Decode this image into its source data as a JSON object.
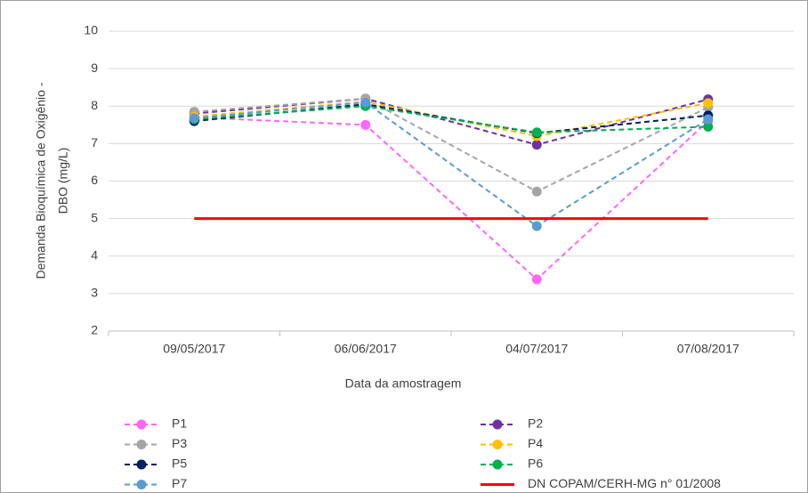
{
  "chart_data": {
    "type": "line",
    "ylabel": [
      "Demanda Bioquímica de Oxigênio -",
      "DBO (mg/L)"
    ],
    "xlabel": "Data da amostragem",
    "categories": [
      "09/05/2017",
      "06/06/2017",
      "04/07/2017",
      "07/08/2017"
    ],
    "ylim": [
      2,
      10
    ],
    "yticks": [
      2,
      3,
      4,
      5,
      6,
      7,
      8,
      9,
      10
    ],
    "grid": true,
    "series": [
      {
        "name": "P1",
        "color": "#ff66ff",
        "dashed": true,
        "markers": true,
        "values": [
          7.7,
          7.5,
          3.38,
          7.6
        ]
      },
      {
        "name": "P2",
        "color": "#7030a0",
        "dashed": true,
        "markers": true,
        "values": [
          7.8,
          8.2,
          6.97,
          8.18
        ]
      },
      {
        "name": "P3",
        "color": "#a5a5a5",
        "dashed": true,
        "markers": true,
        "values": [
          7.85,
          8.2,
          5.72,
          7.97
        ]
      },
      {
        "name": "P4",
        "color": "#ffc000",
        "dashed": true,
        "markers": true,
        "values": [
          7.72,
          8.12,
          7.2,
          8.08
        ]
      },
      {
        "name": "P5",
        "color": "#002060",
        "dashed": true,
        "markers": true,
        "values": [
          7.6,
          8.05,
          7.28,
          7.75
        ]
      },
      {
        "name": "P6",
        "color": "#00b050",
        "dashed": true,
        "markers": true,
        "values": [
          7.65,
          8.0,
          7.3,
          7.45
        ]
      },
      {
        "name": "P7",
        "color": "#5b9bd5",
        "dashed": true,
        "markers": true,
        "values": [
          7.68,
          8.1,
          4.8,
          7.65
        ]
      },
      {
        "name": "DN COPAM/CERH-MG n° 01/2008",
        "color": "#ff0000",
        "dashed": false,
        "markers": false,
        "values": [
          5,
          5,
          5,
          5
        ]
      }
    ]
  }
}
